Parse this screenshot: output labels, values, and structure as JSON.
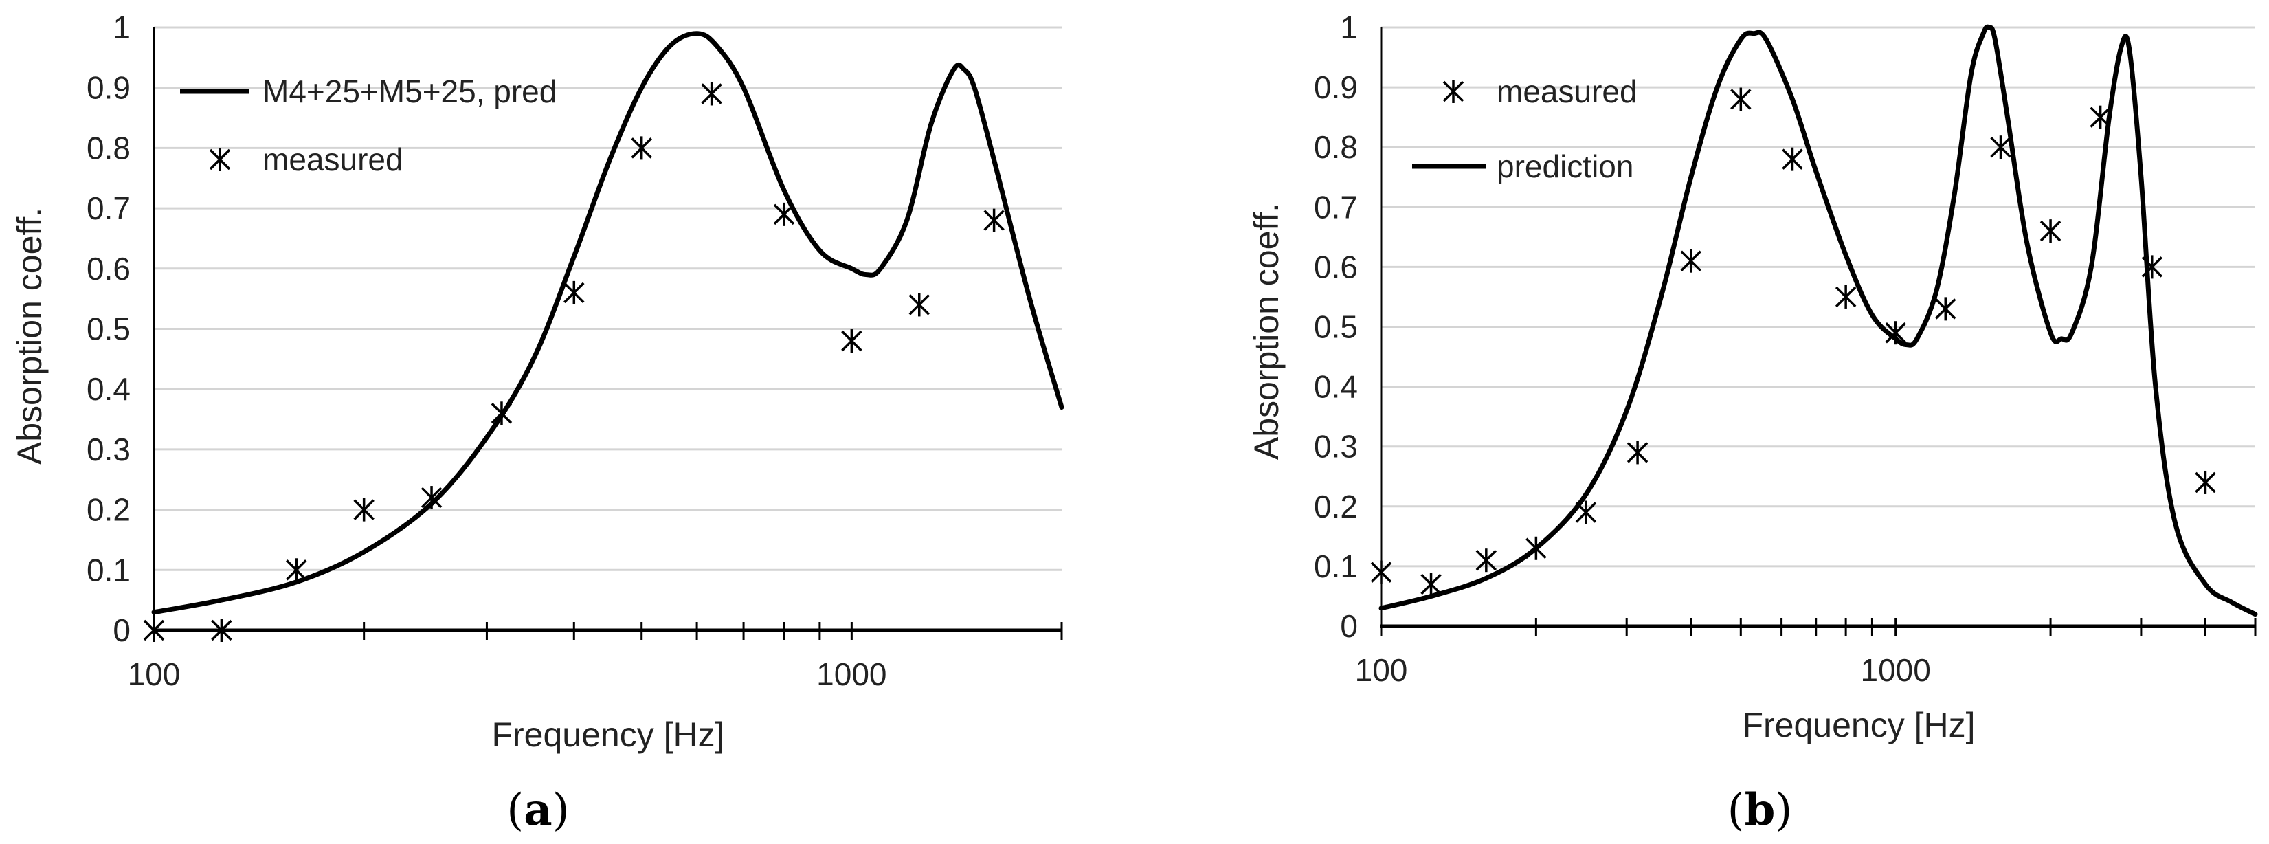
{
  "chart_data": [
    {
      "type": "line",
      "panel_label": {
        "open": "(",
        "letter": "a",
        "close": ")"
      },
      "xlabel": "Frequency [Hz]",
      "ylabel": "Absorption coeff.",
      "xscale": "log",
      "xlim": [
        100,
        2000
      ],
      "ylim": [
        0,
        1
      ],
      "x_tick_labels": [
        {
          "value": 100,
          "label": "100"
        },
        {
          "value": 1000,
          "label": "1000"
        }
      ],
      "y_tick_labels": [
        "0",
        "0.1",
        "0.2",
        "0.3",
        "0.4",
        "0.5",
        "0.6",
        "0.7",
        "0.8",
        "0.9",
        "1"
      ],
      "grid": "horizontal",
      "legend_position": "top-left",
      "series": [
        {
          "name": "M4+25+M5+25, pred",
          "kind": "line",
          "x": [
            100,
            125,
            160,
            200,
            250,
            300,
            350,
            400,
            450,
            500,
            550,
            600,
            640,
            700,
            800,
            900,
            1000,
            1050,
            1100,
            1200,
            1300,
            1400,
            1450,
            1500,
            1600,
            1800,
            2000
          ],
          "y": [
            0.03,
            0.05,
            0.08,
            0.13,
            0.21,
            0.32,
            0.45,
            0.62,
            0.78,
            0.9,
            0.97,
            0.99,
            0.97,
            0.9,
            0.73,
            0.63,
            0.6,
            0.59,
            0.6,
            0.68,
            0.84,
            0.93,
            0.93,
            0.9,
            0.78,
            0.55,
            0.37
          ]
        },
        {
          "name": "measured",
          "kind": "scatter",
          "x": [
            100,
            125,
            160,
            200,
            250,
            315,
            400,
            500,
            630,
            800,
            1000,
            1250,
            1600
          ],
          "y": [
            0.0,
            0.0,
            0.1,
            0.2,
            0.22,
            0.36,
            0.56,
            0.8,
            0.89,
            0.69,
            0.48,
            0.54,
            0.68
          ]
        }
      ]
    },
    {
      "type": "line",
      "panel_label": {
        "open": "(",
        "letter": "b",
        "close": ")"
      },
      "xlabel": "Frequency [Hz]",
      "ylabel": "Absorption coeff.",
      "xscale": "log",
      "xlim": [
        100,
        5000
      ],
      "ylim": [
        0,
        1
      ],
      "x_tick_labels": [
        {
          "value": 100,
          "label": "100"
        },
        {
          "value": 1000,
          "label": "1000"
        }
      ],
      "y_tick_labels": [
        "0",
        "0.1",
        "0.2",
        "0.3",
        "0.4",
        "0.5",
        "0.6",
        "0.7",
        "0.8",
        "0.9",
        "1"
      ],
      "grid": "horizontal",
      "legend_position": "top-left",
      "series": [
        {
          "name": "measured",
          "kind": "scatter",
          "x": [
            100,
            125,
            160,
            200,
            250,
            315,
            400,
            500,
            630,
            800,
            1000,
            1250,
            1600,
            2000,
            2500,
            3150,
            4000
          ],
          "y": [
            0.09,
            0.07,
            0.11,
            0.13,
            0.19,
            0.29,
            0.61,
            0.88,
            0.78,
            0.55,
            0.49,
            0.53,
            0.8,
            0.66,
            0.85,
            0.6,
            0.24
          ]
        },
        {
          "name": "prediction",
          "kind": "line",
          "x": [
            100,
            125,
            160,
            200,
            250,
            300,
            350,
            400,
            450,
            500,
            530,
            560,
            630,
            700,
            800,
            900,
            1000,
            1050,
            1100,
            1200,
            1300,
            1400,
            1480,
            1520,
            1560,
            1650,
            1800,
            2000,
            2100,
            2200,
            2400,
            2600,
            2750,
            2850,
            3000,
            3200,
            3500,
            4000,
            4500,
            5000
          ],
          "y": [
            0.03,
            0.05,
            0.08,
            0.13,
            0.22,
            0.36,
            0.55,
            0.75,
            0.9,
            0.98,
            0.99,
            0.98,
            0.88,
            0.76,
            0.62,
            0.52,
            0.48,
            0.47,
            0.48,
            0.56,
            0.72,
            0.92,
            0.99,
            1.0,
            0.98,
            0.85,
            0.64,
            0.49,
            0.48,
            0.49,
            0.6,
            0.85,
            0.97,
            0.96,
            0.75,
            0.4,
            0.17,
            0.07,
            0.04,
            0.02
          ]
        }
      ]
    }
  ]
}
